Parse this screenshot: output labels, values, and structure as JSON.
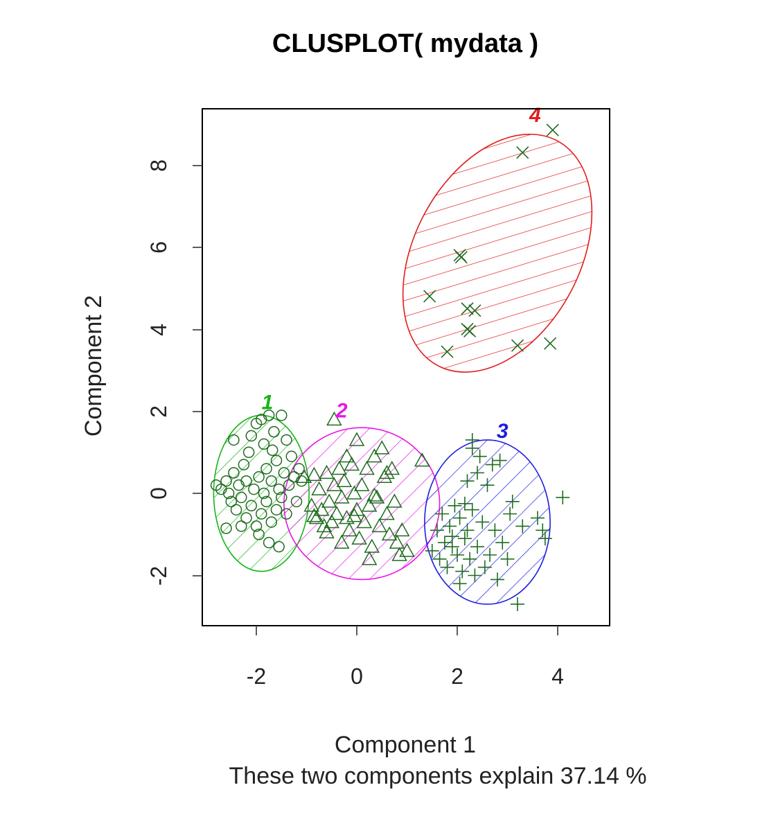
{
  "chart_data": {
    "type": "scatter",
    "title": "CLUSPLOT( mydata )",
    "xlabel": "Component 1",
    "ylabel": "Component 2",
    "subtitle": "These two components explain 37.14 %",
    "xlim": [
      -3.1,
      5.0
    ],
    "ylim": [
      -3.2,
      9.4
    ],
    "x_ticks": [
      -2,
      0,
      2,
      4
    ],
    "y_ticks": [
      -2,
      0,
      2,
      4,
      6,
      8
    ],
    "point_color": "#1f6b1f",
    "axis_color": "#000000",
    "clusters": [
      {
        "label": "1",
        "color": "#17b317",
        "marker": "circle",
        "center": [
          -1.9,
          0.0
        ],
        "radii": [
          0.95,
          1.9
        ],
        "angle": 0,
        "label_pos": [
          -1.78,
          2.05
        ],
        "points": [
          [
            -2.8,
            0.2
          ],
          [
            -2.7,
            0.1
          ],
          [
            -2.6,
            0.3
          ],
          [
            -2.55,
            0.0
          ],
          [
            -2.5,
            -0.2
          ],
          [
            -2.45,
            0.5
          ],
          [
            -2.4,
            -0.4
          ],
          [
            -2.35,
            0.2
          ],
          [
            -2.3,
            -0.1
          ],
          [
            -2.25,
            0.7
          ],
          [
            -2.2,
            -0.6
          ],
          [
            -2.2,
            0.3
          ],
          [
            -2.15,
            1.0
          ],
          [
            -2.1,
            -0.3
          ],
          [
            -2.05,
            0.1
          ],
          [
            -2.0,
            1.7
          ],
          [
            -2.0,
            -0.8
          ],
          [
            -1.95,
            0.4
          ],
          [
            -1.9,
            1.8
          ],
          [
            -1.9,
            -0.5
          ],
          [
            -1.85,
            0.0
          ],
          [
            -1.85,
            1.2
          ],
          [
            -1.8,
            -0.2
          ],
          [
            -1.8,
            0.6
          ],
          [
            -1.75,
            1.9
          ],
          [
            -1.7,
            -0.7
          ],
          [
            -1.7,
            0.3
          ],
          [
            -1.65,
            1.5
          ],
          [
            -1.6,
            -0.4
          ],
          [
            -1.6,
            0.8
          ],
          [
            -1.55,
            0.1
          ],
          [
            -1.5,
            1.9
          ],
          [
            -1.5,
            -0.1
          ],
          [
            -1.45,
            0.5
          ],
          [
            -1.4,
            1.3
          ],
          [
            -1.4,
            -0.5
          ],
          [
            -1.35,
            0.2
          ],
          [
            -1.3,
            0.9
          ],
          [
            -1.25,
            0.4
          ],
          [
            -1.2,
            -0.2
          ],
          [
            -1.15,
            0.6
          ],
          [
            -1.1,
            0.3
          ],
          [
            -2.3,
            -0.8
          ],
          [
            -2.1,
            1.4
          ],
          [
            -1.75,
            -1.2
          ],
          [
            -1.55,
            -1.3
          ],
          [
            -2.6,
            -0.85
          ],
          [
            -2.45,
            1.3
          ],
          [
            -1.95,
            -1.0
          ],
          [
            -1.68,
            1.05
          ]
        ]
      },
      {
        "label": "2",
        "color": "#e815e8",
        "marker": "triangle",
        "center": [
          0.1,
          -0.25
        ],
        "radii": [
          1.55,
          1.85
        ],
        "angle": 0,
        "label_pos": [
          -0.3,
          1.85
        ],
        "points": [
          [
            -1.05,
            0.4
          ],
          [
            -0.9,
            -0.3
          ],
          [
            -0.85,
            0.45
          ],
          [
            -0.8,
            -0.6
          ],
          [
            -0.75,
            0.1
          ],
          [
            -0.7,
            -0.4
          ],
          [
            -0.65,
            -0.8
          ],
          [
            -0.6,
            0.5
          ],
          [
            -0.55,
            -0.2
          ],
          [
            -0.5,
            -0.7
          ],
          [
            -0.45,
            1.8
          ],
          [
            -0.45,
            0.2
          ],
          [
            -0.4,
            -0.5
          ],
          [
            -0.35,
            0.6
          ],
          [
            -0.3,
            -0.1
          ],
          [
            -0.3,
            -1.2
          ],
          [
            -0.25,
            0.3
          ],
          [
            -0.2,
            -0.6
          ],
          [
            -0.15,
            -0.9
          ],
          [
            -0.1,
            0.7
          ],
          [
            -0.05,
            0.0
          ],
          [
            0.0,
            -0.4
          ],
          [
            0.0,
            1.3
          ],
          [
            0.05,
            -1.1
          ],
          [
            0.1,
            0.2
          ],
          [
            0.15,
            -0.7
          ],
          [
            0.2,
            0.6
          ],
          [
            0.25,
            -0.3
          ],
          [
            0.3,
            -1.3
          ],
          [
            0.35,
            0.9
          ],
          [
            0.4,
            -0.1
          ],
          [
            0.45,
            -0.8
          ],
          [
            0.5,
            1.1
          ],
          [
            0.55,
            0.4
          ],
          [
            0.6,
            -0.5
          ],
          [
            0.65,
            -1.0
          ],
          [
            0.7,
            0.6
          ],
          [
            0.75,
            -0.2
          ],
          [
            0.8,
            -1.2
          ],
          [
            0.85,
            -1.5
          ],
          [
            0.9,
            -0.9
          ],
          [
            1.0,
            -1.4
          ],
          [
            1.3,
            0.8
          ],
          [
            -0.6,
            -0.95
          ],
          [
            -0.2,
            0.9
          ],
          [
            0.25,
            -1.6
          ],
          [
            0.6,
            0.5
          ],
          [
            -0.85,
            -0.55
          ],
          [
            0.35,
            -0.05
          ],
          [
            -0.05,
            -0.55
          ]
        ]
      },
      {
        "label": "3",
        "color": "#1c1ce0",
        "marker": "plus",
        "center": [
          2.6,
          -0.7
        ],
        "radii": [
          1.25,
          2.0
        ],
        "angle": 0,
        "label_pos": [
          2.9,
          1.35
        ],
        "points": [
          [
            1.5,
            -1.4
          ],
          [
            1.6,
            -0.9
          ],
          [
            1.65,
            -1.6
          ],
          [
            1.7,
            -0.5
          ],
          [
            1.75,
            -1.2
          ],
          [
            1.8,
            -1.8
          ],
          [
            1.85,
            -0.8
          ],
          [
            1.9,
            -1.3
          ],
          [
            1.95,
            -0.3
          ],
          [
            2.0,
            -1.5
          ],
          [
            2.05,
            -0.6
          ],
          [
            2.1,
            -1.9
          ],
          [
            2.15,
            -1.1
          ],
          [
            2.2,
            0.3
          ],
          [
            2.2,
            -0.9
          ],
          [
            2.25,
            -1.6
          ],
          [
            2.3,
            1.1
          ],
          [
            2.3,
            -0.4
          ],
          [
            2.35,
            -2.0
          ],
          [
            2.4,
            0.5
          ],
          [
            2.4,
            -1.3
          ],
          [
            2.45,
            0.9
          ],
          [
            2.5,
            -0.7
          ],
          [
            2.55,
            -1.8
          ],
          [
            2.6,
            0.2
          ],
          [
            2.65,
            -1.5
          ],
          [
            2.7,
            0.7
          ],
          [
            2.75,
            -0.9
          ],
          [
            2.8,
            -2.1
          ],
          [
            2.85,
            0.8
          ],
          [
            2.9,
            -1.2
          ],
          [
            3.0,
            -1.6
          ],
          [
            3.05,
            -0.5
          ],
          [
            3.1,
            -0.2
          ],
          [
            3.2,
            -2.7
          ],
          [
            3.3,
            -0.8
          ],
          [
            3.6,
            -0.6
          ],
          [
            3.7,
            -0.9
          ],
          [
            3.75,
            -1.1
          ],
          [
            4.1,
            -0.1
          ],
          [
            2.3,
            1.3
          ],
          [
            2.15,
            -0.25
          ],
          [
            1.9,
            -1.05
          ],
          [
            2.05,
            -2.2
          ]
        ]
      },
      {
        "label": "4",
        "color": "#e01c1c",
        "marker": "x",
        "center": [
          2.8,
          5.85
        ],
        "radii": [
          1.65,
          3.1
        ],
        "angle": 28,
        "label_pos": [
          3.55,
          9.05
        ],
        "points": [
          [
            1.45,
            4.8
          ],
          [
            1.8,
            3.45
          ],
          [
            2.05,
            5.8
          ],
          [
            2.08,
            5.75
          ],
          [
            2.2,
            4.0
          ],
          [
            2.25,
            3.95
          ],
          [
            2.2,
            4.5
          ],
          [
            2.35,
            4.45
          ],
          [
            3.2,
            3.6
          ],
          [
            3.3,
            8.3
          ],
          [
            3.9,
            8.85
          ],
          [
            3.85,
            3.65
          ]
        ]
      }
    ]
  }
}
